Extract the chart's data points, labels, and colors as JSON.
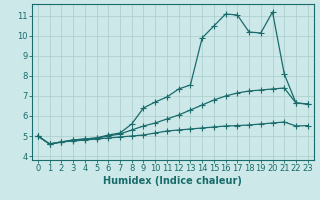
{
  "background_color": "#cce8e8",
  "grid_color": "#aacccc",
  "line_color": "#1a6b6b",
  "xlabel": "Humidex (Indice chaleur)",
  "xlabel_fontsize": 7,
  "tick_fontsize": 6,
  "xlim": [
    -0.5,
    23.5
  ],
  "ylim": [
    3.8,
    11.6
  ],
  "yticks": [
    4,
    5,
    6,
    7,
    8,
    9,
    10,
    11
  ],
  "xticks": [
    0,
    1,
    2,
    3,
    4,
    5,
    6,
    7,
    8,
    9,
    10,
    11,
    12,
    13,
    14,
    15,
    16,
    17,
    18,
    19,
    20,
    21,
    22,
    23
  ],
  "series": {
    "top": [
      5.0,
      4.6,
      4.7,
      4.8,
      4.85,
      4.9,
      5.05,
      5.15,
      5.6,
      6.4,
      6.7,
      6.95,
      7.35,
      7.55,
      9.9,
      10.5,
      11.1,
      11.05,
      10.2,
      10.15,
      11.2,
      8.1,
      6.65,
      6.6
    ],
    "mid": [
      5.0,
      4.6,
      4.7,
      4.8,
      4.85,
      4.9,
      5.0,
      5.1,
      5.3,
      5.5,
      5.65,
      5.85,
      6.05,
      6.3,
      6.55,
      6.8,
      7.0,
      7.15,
      7.25,
      7.3,
      7.35,
      7.4,
      6.65,
      6.6
    ],
    "bot": [
      5.0,
      4.6,
      4.7,
      4.75,
      4.8,
      4.85,
      4.9,
      4.95,
      5.0,
      5.05,
      5.15,
      5.25,
      5.3,
      5.35,
      5.4,
      5.45,
      5.5,
      5.52,
      5.55,
      5.6,
      5.65,
      5.7,
      5.5,
      5.52
    ]
  }
}
